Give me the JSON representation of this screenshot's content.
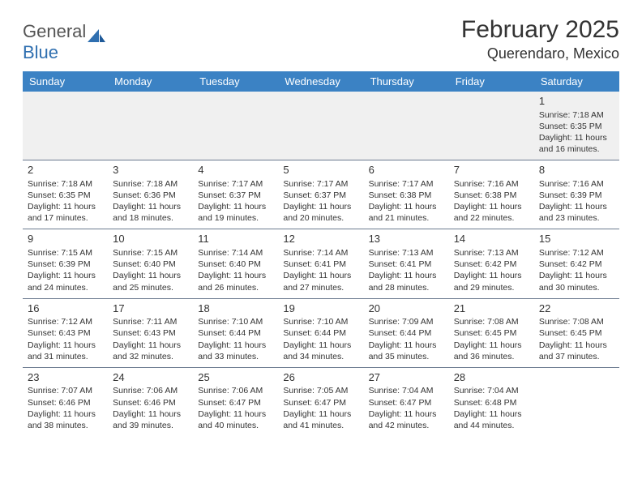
{
  "logo": {
    "text1": "General",
    "text2": "Blue"
  },
  "title": "February 2025",
  "location": "Querendaro, Mexico",
  "colors": {
    "header_bg": "#3b82c4",
    "header_text": "#ffffff",
    "row_divider": "#6b7a8f",
    "first_row_bg": "#f0f0f0",
    "text": "#333333",
    "logo_blue": "#2f6fb0"
  },
  "typography": {
    "title_fontsize": 30,
    "location_fontsize": 18,
    "dayheader_fontsize": 13,
    "body_fontsize": 10.5
  },
  "day_headers": [
    "Sunday",
    "Monday",
    "Tuesday",
    "Wednesday",
    "Thursday",
    "Friday",
    "Saturday"
  ],
  "weeks": [
    [
      null,
      null,
      null,
      null,
      null,
      null,
      {
        "n": "1",
        "sunrise": "Sunrise: 7:18 AM",
        "sunset": "Sunset: 6:35 PM",
        "daylight": "Daylight: 11 hours and 16 minutes."
      }
    ],
    [
      {
        "n": "2",
        "sunrise": "Sunrise: 7:18 AM",
        "sunset": "Sunset: 6:35 PM",
        "daylight": "Daylight: 11 hours and 17 minutes."
      },
      {
        "n": "3",
        "sunrise": "Sunrise: 7:18 AM",
        "sunset": "Sunset: 6:36 PM",
        "daylight": "Daylight: 11 hours and 18 minutes."
      },
      {
        "n": "4",
        "sunrise": "Sunrise: 7:17 AM",
        "sunset": "Sunset: 6:37 PM",
        "daylight": "Daylight: 11 hours and 19 minutes."
      },
      {
        "n": "5",
        "sunrise": "Sunrise: 7:17 AM",
        "sunset": "Sunset: 6:37 PM",
        "daylight": "Daylight: 11 hours and 20 minutes."
      },
      {
        "n": "6",
        "sunrise": "Sunrise: 7:17 AM",
        "sunset": "Sunset: 6:38 PM",
        "daylight": "Daylight: 11 hours and 21 minutes."
      },
      {
        "n": "7",
        "sunrise": "Sunrise: 7:16 AM",
        "sunset": "Sunset: 6:38 PM",
        "daylight": "Daylight: 11 hours and 22 minutes."
      },
      {
        "n": "8",
        "sunrise": "Sunrise: 7:16 AM",
        "sunset": "Sunset: 6:39 PM",
        "daylight": "Daylight: 11 hours and 23 minutes."
      }
    ],
    [
      {
        "n": "9",
        "sunrise": "Sunrise: 7:15 AM",
        "sunset": "Sunset: 6:39 PM",
        "daylight": "Daylight: 11 hours and 24 minutes."
      },
      {
        "n": "10",
        "sunrise": "Sunrise: 7:15 AM",
        "sunset": "Sunset: 6:40 PM",
        "daylight": "Daylight: 11 hours and 25 minutes."
      },
      {
        "n": "11",
        "sunrise": "Sunrise: 7:14 AM",
        "sunset": "Sunset: 6:40 PM",
        "daylight": "Daylight: 11 hours and 26 minutes."
      },
      {
        "n": "12",
        "sunrise": "Sunrise: 7:14 AM",
        "sunset": "Sunset: 6:41 PM",
        "daylight": "Daylight: 11 hours and 27 minutes."
      },
      {
        "n": "13",
        "sunrise": "Sunrise: 7:13 AM",
        "sunset": "Sunset: 6:41 PM",
        "daylight": "Daylight: 11 hours and 28 minutes."
      },
      {
        "n": "14",
        "sunrise": "Sunrise: 7:13 AM",
        "sunset": "Sunset: 6:42 PM",
        "daylight": "Daylight: 11 hours and 29 minutes."
      },
      {
        "n": "15",
        "sunrise": "Sunrise: 7:12 AM",
        "sunset": "Sunset: 6:42 PM",
        "daylight": "Daylight: 11 hours and 30 minutes."
      }
    ],
    [
      {
        "n": "16",
        "sunrise": "Sunrise: 7:12 AM",
        "sunset": "Sunset: 6:43 PM",
        "daylight": "Daylight: 11 hours and 31 minutes."
      },
      {
        "n": "17",
        "sunrise": "Sunrise: 7:11 AM",
        "sunset": "Sunset: 6:43 PM",
        "daylight": "Daylight: 11 hours and 32 minutes."
      },
      {
        "n": "18",
        "sunrise": "Sunrise: 7:10 AM",
        "sunset": "Sunset: 6:44 PM",
        "daylight": "Daylight: 11 hours and 33 minutes."
      },
      {
        "n": "19",
        "sunrise": "Sunrise: 7:10 AM",
        "sunset": "Sunset: 6:44 PM",
        "daylight": "Daylight: 11 hours and 34 minutes."
      },
      {
        "n": "20",
        "sunrise": "Sunrise: 7:09 AM",
        "sunset": "Sunset: 6:44 PM",
        "daylight": "Daylight: 11 hours and 35 minutes."
      },
      {
        "n": "21",
        "sunrise": "Sunrise: 7:08 AM",
        "sunset": "Sunset: 6:45 PM",
        "daylight": "Daylight: 11 hours and 36 minutes."
      },
      {
        "n": "22",
        "sunrise": "Sunrise: 7:08 AM",
        "sunset": "Sunset: 6:45 PM",
        "daylight": "Daylight: 11 hours and 37 minutes."
      }
    ],
    [
      {
        "n": "23",
        "sunrise": "Sunrise: 7:07 AM",
        "sunset": "Sunset: 6:46 PM",
        "daylight": "Daylight: 11 hours and 38 minutes."
      },
      {
        "n": "24",
        "sunrise": "Sunrise: 7:06 AM",
        "sunset": "Sunset: 6:46 PM",
        "daylight": "Daylight: 11 hours and 39 minutes."
      },
      {
        "n": "25",
        "sunrise": "Sunrise: 7:06 AM",
        "sunset": "Sunset: 6:47 PM",
        "daylight": "Daylight: 11 hours and 40 minutes."
      },
      {
        "n": "26",
        "sunrise": "Sunrise: 7:05 AM",
        "sunset": "Sunset: 6:47 PM",
        "daylight": "Daylight: 11 hours and 41 minutes."
      },
      {
        "n": "27",
        "sunrise": "Sunrise: 7:04 AM",
        "sunset": "Sunset: 6:47 PM",
        "daylight": "Daylight: 11 hours and 42 minutes."
      },
      {
        "n": "28",
        "sunrise": "Sunrise: 7:04 AM",
        "sunset": "Sunset: 6:48 PM",
        "daylight": "Daylight: 11 hours and 44 minutes."
      },
      null
    ]
  ]
}
